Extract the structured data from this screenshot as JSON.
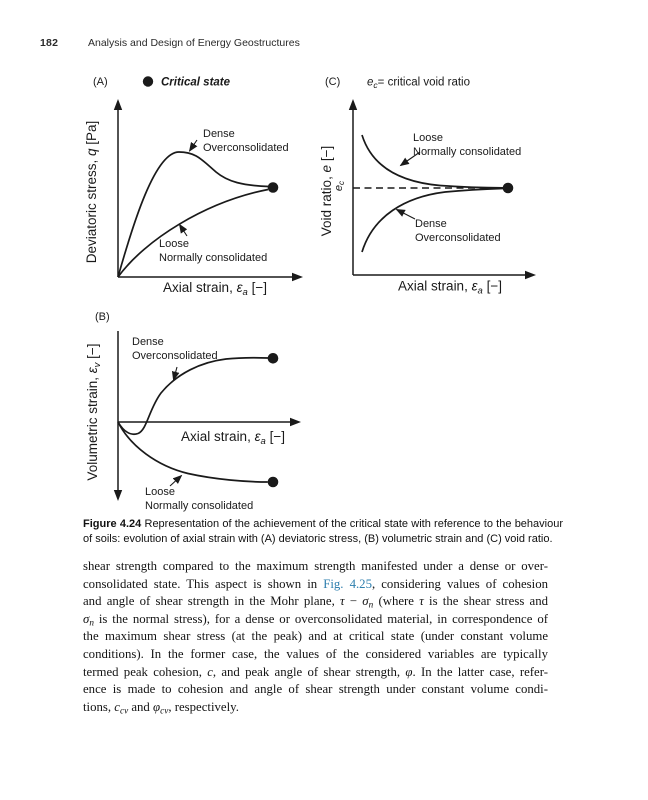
{
  "page": {
    "number": "182",
    "running_title": "Analysis and Design of Energy Geostructures"
  },
  "colors": {
    "ink": "#1a1a1a",
    "link": "#2e7fae"
  },
  "figure": {
    "panelA": {
      "tag": "(A)",
      "legend_label": "Critical state",
      "y_label": {
        "pre": "Deviatoric stress, ",
        "sym": "q",
        "post": " [Pa]"
      },
      "x_label": {
        "pre": "Axial strain, ",
        "sym": "ε",
        "sub": "a",
        "post": " [−]"
      },
      "dense": {
        "line1": "Dense",
        "line2": "Overconsolidated"
      },
      "loose": {
        "line1": "Loose",
        "line2": "Normally consolidated"
      }
    },
    "panelB": {
      "tag": "(B)",
      "y_label": {
        "pre": "Volumetric strain, ",
        "sym": "ε",
        "sub": "v",
        "post": " [−]"
      },
      "x_label": {
        "pre": "Axial strain, ",
        "sym": "ε",
        "sub": "a",
        "post": " [−]"
      },
      "dense": {
        "line1": "Dense",
        "line2": "Overconsolidated"
      },
      "loose": {
        "line1": "Loose",
        "line2": "Normally consolidated"
      }
    },
    "panelC": {
      "tag": "(C)",
      "legend": {
        "sym": "e",
        "sub": "c",
        "rest": "= critical void ratio"
      },
      "y_label": {
        "pre": "Void ratio, ",
        "sym": "e",
        "post": " [−]"
      },
      "x_label": {
        "pre": "Axial strain, ",
        "sym": "ε",
        "sub": "a",
        "post": " [−]"
      },
      "tick": {
        "sym": "e",
        "sub": "c"
      },
      "dense": {
        "line1": "Dense",
        "line2": "Overconsolidated"
      },
      "loose": {
        "line1": "Loose",
        "line2": "Normally consolidated"
      }
    },
    "caption_lines": [
      [
        {
          "t": "Figure 4.24",
          "s": "b"
        },
        {
          "t": " Representation of the achievement of the critical state with reference to the behaviour",
          "s": ""
        }
      ],
      [
        {
          "t": "of soils: evolution of axial strain with (A) deviatoric stress, (B) volumetric strain and (C) void ratio.",
          "s": ""
        }
      ]
    ]
  },
  "body": {
    "lines": [
      [
        {
          "t": "shear strength compared to the maximum strength manifested under a dense or over-",
          "s": ""
        }
      ],
      [
        {
          "t": "consolidated state. This aspect is shown in ",
          "s": ""
        },
        {
          "t": "Fig. 4.25",
          "s": "link",
          "n": "fig-4-25-link"
        },
        {
          "t": ", considering values of cohesion",
          "s": ""
        }
      ],
      [
        {
          "t": "and angle of shear strength in the Mohr plane, ",
          "s": ""
        },
        {
          "t": "τ",
          "s": "i"
        },
        {
          "t": " − ",
          "s": ""
        },
        {
          "t": "σ",
          "s": "i"
        },
        {
          "t": "n",
          "s": "i sub"
        },
        {
          "t": " (where ",
          "s": ""
        },
        {
          "t": "τ",
          "s": "i"
        },
        {
          "t": " is the shear stress and",
          "s": ""
        }
      ],
      [
        {
          "t": "σ",
          "s": "i"
        },
        {
          "t": "n",
          "s": "i sub"
        },
        {
          "t": " is the normal stress), for a dense or overconsolidated material, in correspondence of",
          "s": ""
        }
      ],
      [
        {
          "t": "the maximum shear stress (at the peak) and at critical state (under constant volume",
          "s": ""
        }
      ],
      [
        {
          "t": "conditions). In the former case, the values of the considered variables are typically",
          "s": ""
        }
      ],
      [
        {
          "t": "termed peak cohesion, ",
          "s": ""
        },
        {
          "t": "c",
          "s": "i"
        },
        {
          "t": ", and peak angle of shear strength, ",
          "s": ""
        },
        {
          "t": "φ",
          "s": "i"
        },
        {
          "t": ". In the latter case, refer-",
          "s": ""
        }
      ],
      [
        {
          "t": "ence is made to cohesion and angle of shear strength under constant volume condi-",
          "s": ""
        }
      ],
      [
        {
          "t": "tions, ",
          "s": ""
        },
        {
          "t": "c",
          "s": "i"
        },
        {
          "t": "cv",
          "s": "i sub"
        },
        {
          "t": " and ",
          "s": ""
        },
        {
          "t": "φ",
          "s": "i"
        },
        {
          "t": "cv",
          "s": "i sub"
        },
        {
          "t": ", respectively.",
          "s": ""
        }
      ]
    ]
  }
}
